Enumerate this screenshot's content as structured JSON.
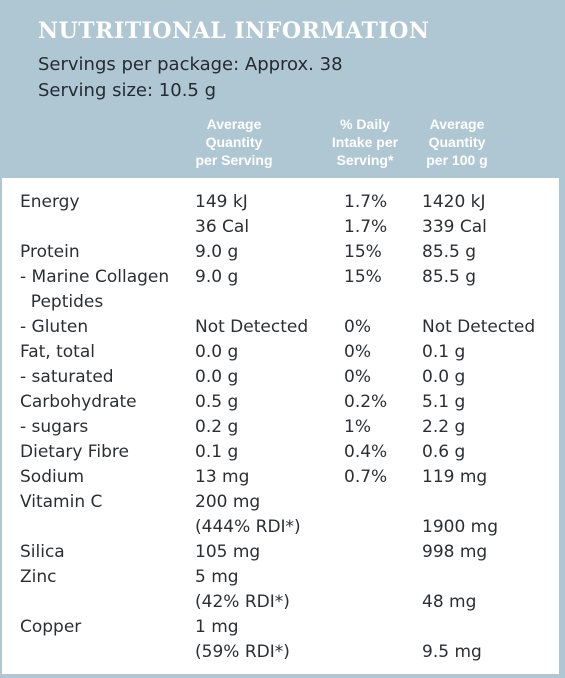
{
  "title": "NUTRITIONAL INFORMATION",
  "servings": "Servings per package: Approx. 38",
  "serving_size": "Serving size: 10.5 g",
  "headers": {
    "per_serving": "Average\nQuantity\nper Serving",
    "daily_intake": "% Daily\nIntake per\nServing*",
    "per_100g": "Average\nQuantity\nper 100 g"
  },
  "rows": [
    {
      "name": "Energy",
      "serving": "149 kJ",
      "daily": "1.7%",
      "per100": "1420 kJ"
    },
    {
      "name": "",
      "serving": "36 Cal",
      "daily": "1.7%",
      "per100": "339 Cal"
    },
    {
      "name": "Protein",
      "serving": "9.0 g",
      "daily": "15%",
      "per100": "85.5 g"
    },
    {
      "name": "- Marine Collagen",
      "serving": "9.0 g",
      "daily": "15%",
      "per100": "85.5 g"
    },
    {
      "name": "  Peptides",
      "serving": "",
      "daily": "",
      "per100": ""
    },
    {
      "name": "- Gluten",
      "serving": "Not Detected",
      "daily": "0%",
      "per100": "Not Detected"
    },
    {
      "name": "Fat, total",
      "serving": "0.0 g",
      "daily": "0%",
      "per100": "0.1 g"
    },
    {
      "name": "- saturated",
      "serving": "0.0 g",
      "daily": "0%",
      "per100": "0.0 g"
    },
    {
      "name": "Carbohydrate",
      "serving": "0.5 g",
      "daily": "0.2%",
      "per100": "5.1 g"
    },
    {
      "name": "- sugars",
      "serving": "0.2 g",
      "daily": "1%",
      "per100": "2.2 g"
    },
    {
      "name": "Dietary Fibre",
      "serving": "0.1 g",
      "daily": "0.4%",
      "per100": "0.6 g"
    },
    {
      "name": "Sodium",
      "serving": "13 mg",
      "daily": "0.7%",
      "per100": "119 mg"
    },
    {
      "name": "Vitamin C",
      "serving": "200 mg",
      "daily": "",
      "per100": ""
    },
    {
      "name": "",
      "serving": "(444% RDI*)",
      "daily": "",
      "per100": "1900 mg"
    },
    {
      "name": "Silica",
      "serving": "105 mg",
      "daily": "",
      "per100": "998 mg"
    },
    {
      "name": "Zinc",
      "serving": "5 mg",
      "daily": "",
      "per100": ""
    },
    {
      "name": "",
      "serving": "(42% RDI*)",
      "daily": "",
      "per100": "48 mg"
    },
    {
      "name": "Copper",
      "serving": "1 mg",
      "daily": "",
      "per100": ""
    },
    {
      "name": "",
      "serving": "(59% RDI*)",
      "daily": "",
      "per100": "9.5 mg"
    }
  ]
}
